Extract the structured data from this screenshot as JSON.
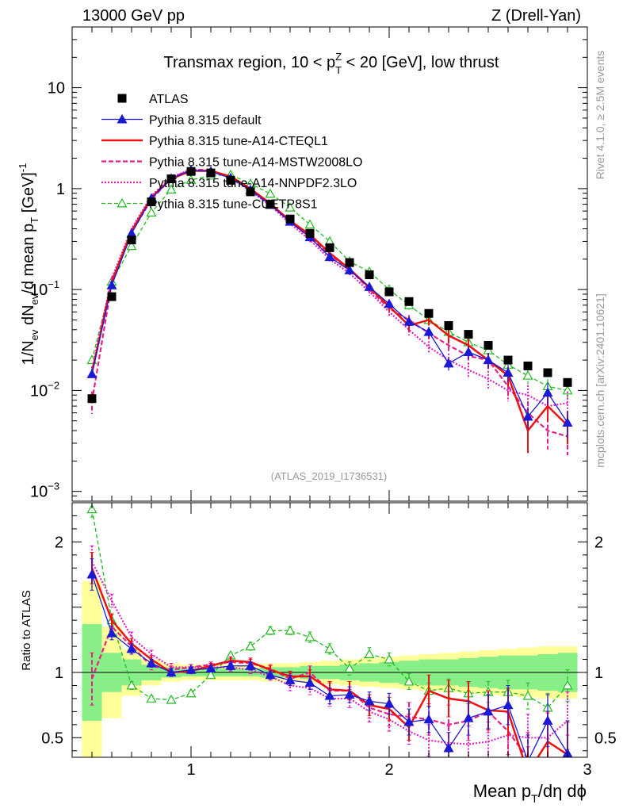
{
  "header": {
    "left": "13000 GeV pp",
    "right": "Z (Drell-Yan)"
  },
  "side_labels": {
    "rivet": "Rivet 4.1.0, ≥ 2.5M events",
    "mcplots": "mcplots.cern.ch [arXiv:2401.10621]"
  },
  "colors": {
    "data": "#000000",
    "default": "#1a1ad6",
    "cteql1": "#ee1111",
    "mstw": "#e8208a",
    "nnpdf": "#e020c8",
    "cuetp8s1": "#22bb22",
    "band_outer": "#ffff99",
    "band_inner": "#88ee88"
  },
  "chart_data": [
    {
      "type": "scatter",
      "title": "Transmax region, 10 < pT^Z < 20 [GeV], low thrust",
      "title_parts": {
        "pre": "Transmax region, 10 < p",
        "sub": "T",
        "sup": "Z",
        "post": " < 20 [GeV], low thrust"
      },
      "watermark": "(ATLAS_2019_I1736531)",
      "ylabel": "1/N_ev dN_ev/d mean p_T [GeV]^-1",
      "ylabel_parts": {
        "a": "1/N",
        "a_sub": "ev",
        "b": " dN",
        "b_sub": "ev",
        "c": "/d mean p",
        "c_sub": "T",
        "d": " [GeV]",
        "d_sup": "-1"
      },
      "yscale": "log",
      "ylim": [
        0.0008,
        40
      ],
      "xlim": [
        0.4,
        3.0
      ],
      "y_tick_labels": [
        {
          "value": 0.001,
          "base": "10",
          "exp": "−3"
        },
        {
          "value": 0.01,
          "base": "10",
          "exp": "−2"
        },
        {
          "value": 0.1,
          "base": "10",
          "exp": "−1"
        },
        {
          "value": 1,
          "base": "1",
          "exp": ""
        },
        {
          "value": 10,
          "base": "10",
          "exp": ""
        }
      ],
      "legend_position": "top-left",
      "legend": [
        {
          "key": "data",
          "label": "ATLAS"
        },
        {
          "key": "default",
          "label": "Pythia 8.315 default"
        },
        {
          "key": "cteql1",
          "label": "Pythia 8.315 tune-A14-CTEQL1"
        },
        {
          "key": "mstw",
          "label": "Pythia 8.315 tune-A14-MSTW2008LO"
        },
        {
          "key": "nnpdf",
          "label": "Pythia 8.315 tune-A14-NNPDF2.3LO"
        },
        {
          "key": "cuetp8s1",
          "label": "Pythia 8.315 tune-CUETP8S1"
        }
      ],
      "x": [
        0.5,
        0.6,
        0.7,
        0.8,
        0.9,
        1.0,
        1.1,
        1.2,
        1.3,
        1.4,
        1.5,
        1.6,
        1.7,
        1.8,
        1.9,
        2.0,
        2.1,
        2.2,
        2.3,
        2.4,
        2.5,
        2.6,
        2.7,
        2.8,
        2.9
      ],
      "series": [
        {
          "key": "data",
          "name": "ATLAS",
          "values": [
            0.0083,
            0.085,
            0.31,
            0.74,
            1.25,
            1.48,
            1.43,
            1.21,
            0.93,
            0.7,
            0.5,
            0.36,
            0.26,
            0.185,
            0.14,
            0.095,
            0.076,
            0.058,
            0.044,
            0.036,
            0.028,
            0.02,
            0.0175,
            0.015,
            0.012
          ]
        },
        {
          "key": "default",
          "name": "Pythia 8.315 default",
          "values": [
            0.0145,
            0.11,
            0.36,
            0.8,
            1.26,
            1.52,
            1.48,
            1.27,
            0.97,
            0.69,
            0.47,
            0.33,
            0.21,
            0.155,
            0.106,
            0.072,
            0.048,
            0.038,
            0.0185,
            0.024,
            0.02,
            0.015,
            0.0055,
            0.0095,
            0.0048
          ],
          "err": [
            0.08,
            0.03,
            0.02,
            0.02,
            0.02,
            0.02,
            0.02,
            0.02,
            0.03,
            0.03,
            0.04,
            0.05,
            0.06,
            0.07,
            0.08,
            0.1,
            0.1,
            0.12,
            0.15,
            0.15,
            0.18,
            0.2,
            0.25,
            0.25,
            0.3
          ]
        },
        {
          "key": "cteql1",
          "name": "Pythia 8.315 tune-A14-CTEQL1",
          "values": [
            0.015,
            0.12,
            0.38,
            0.82,
            1.25,
            1.5,
            1.5,
            1.32,
            1.0,
            0.71,
            0.48,
            0.35,
            0.23,
            0.16,
            0.105,
            0.068,
            0.044,
            0.05,
            0.035,
            0.028,
            0.02,
            0.014,
            0.004,
            0.007,
            0.0045
          ],
          "err": [
            0.08,
            0.03,
            0.02,
            0.02,
            0.02,
            0.02,
            0.02,
            0.02,
            0.03,
            0.03,
            0.04,
            0.05,
            0.06,
            0.07,
            0.08,
            0.1,
            0.12,
            0.12,
            0.15,
            0.15,
            0.18,
            0.22,
            0.4,
            0.3,
            0.35
          ]
        },
        {
          "key": "mstw",
          "name": "Pythia 8.315 tune-A14-MSTW2008LO",
          "values": [
            0.0078,
            0.115,
            0.37,
            0.78,
            1.27,
            1.55,
            1.52,
            1.3,
            0.99,
            0.72,
            0.47,
            0.33,
            0.22,
            0.16,
            0.1,
            0.065,
            0.05,
            0.037,
            0.028,
            0.022,
            0.02,
            0.011,
            0.006,
            0.004,
            0.0035
          ],
          "err": [
            0.25,
            0.03,
            0.02,
            0.02,
            0.02,
            0.02,
            0.02,
            0.02,
            0.03,
            0.03,
            0.04,
            0.05,
            0.06,
            0.07,
            0.08,
            0.1,
            0.12,
            0.14,
            0.15,
            0.18,
            0.18,
            0.25,
            0.3,
            0.35,
            0.35
          ]
        },
        {
          "key": "nnpdf",
          "name": "Pythia 8.315 tune-A14-NNPDF2.3LO",
          "values": [
            0.016,
            0.13,
            0.4,
            0.85,
            1.3,
            1.55,
            1.5,
            1.27,
            0.95,
            0.68,
            0.45,
            0.31,
            0.2,
            0.145,
            0.095,
            0.06,
            0.04,
            0.027,
            0.02,
            0.016,
            0.013,
            0.01,
            0.009,
            0.007,
            0.0075
          ],
          "err": [
            0.08,
            0.03,
            0.02,
            0.02,
            0.02,
            0.02,
            0.02,
            0.02,
            0.03,
            0.03,
            0.04,
            0.05,
            0.06,
            0.07,
            0.08,
            0.1,
            0.12,
            0.14,
            0.16,
            0.18,
            0.2,
            0.22,
            0.25,
            0.28,
            0.3
          ]
        },
        {
          "key": "cuetp8s1",
          "name": "Pythia 8.315 tune-CUETP8S1",
          "values": [
            0.02,
            0.12,
            0.27,
            0.58,
            0.98,
            1.22,
            1.35,
            1.37,
            1.12,
            0.89,
            0.65,
            0.44,
            0.3,
            0.19,
            0.15,
            0.1,
            0.07,
            0.05,
            0.038,
            0.03,
            0.025,
            0.018,
            0.014,
            0.011,
            0.01
          ],
          "err": [
            0.05,
            0.03,
            0.02,
            0.02,
            0.02,
            0.02,
            0.02,
            0.02,
            0.03,
            0.03,
            0.04,
            0.05,
            0.06,
            0.07,
            0.08,
            0.08,
            0.1,
            0.1,
            0.12,
            0.12,
            0.14,
            0.15,
            0.18,
            0.18,
            0.2
          ]
        }
      ]
    },
    {
      "type": "line",
      "ylabel": "Ratio to ATLAS",
      "xlabel": "Mean pT/dη dϕ",
      "xlabel_parts": {
        "a": "Mean p",
        "a_sub": "T",
        "b": "/dη dϕ"
      },
      "xlim": [
        0.4,
        3.0
      ],
      "ylim": [
        0.35,
        2.3
      ],
      "x_tick_labels": [
        1,
        2,
        3
      ],
      "y_tick_labels": [
        0.5,
        1,
        2
      ],
      "x": [
        0.5,
        0.6,
        0.7,
        0.8,
        0.9,
        1.0,
        1.1,
        1.2,
        1.3,
        1.4,
        1.5,
        1.6,
        1.7,
        1.8,
        1.9,
        2.0,
        2.1,
        2.2,
        2.3,
        2.4,
        2.5,
        2.6,
        2.7,
        2.8,
        2.9
      ],
      "bin_edges": [
        0.45,
        0.55,
        0.65,
        0.75,
        0.85,
        0.95,
        1.05,
        1.15,
        1.25,
        1.35,
        1.45,
        1.55,
        1.65,
        1.75,
        1.85,
        1.95,
        2.05,
        2.15,
        2.25,
        2.35,
        2.45,
        2.55,
        2.65,
        2.75,
        2.85,
        2.95
      ],
      "band_inner": [
        0.37,
        0.15,
        0.1,
        0.06,
        0.04,
        0.03,
        0.03,
        0.03,
        0.03,
        0.04,
        0.04,
        0.05,
        0.05,
        0.06,
        0.07,
        0.08,
        0.09,
        0.1,
        0.1,
        0.11,
        0.12,
        0.13,
        0.13,
        0.14,
        0.15
      ],
      "band_outer": [
        0.7,
        0.35,
        0.18,
        0.1,
        0.07,
        0.06,
        0.06,
        0.06,
        0.06,
        0.07,
        0.07,
        0.08,
        0.09,
        0.1,
        0.11,
        0.12,
        0.13,
        0.14,
        0.15,
        0.16,
        0.17,
        0.18,
        0.19,
        0.2,
        0.2
      ],
      "series": [
        {
          "key": "default",
          "name": "Pythia 8.315 default",
          "values": [
            1.75,
            1.3,
            1.18,
            1.07,
            1.0,
            1.02,
            1.03,
            1.05,
            1.05,
            0.98,
            0.94,
            0.92,
            0.82,
            0.83,
            0.78,
            0.76,
            0.62,
            0.64,
            0.42,
            0.65,
            0.7,
            0.75,
            0.32,
            0.63,
            0.38
          ],
          "err": [
            0.12,
            0.05,
            0.04,
            0.03,
            0.03,
            0.02,
            0.02,
            0.03,
            0.03,
            0.03,
            0.04,
            0.05,
            0.06,
            0.06,
            0.07,
            0.08,
            0.1,
            0.1,
            0.12,
            0.13,
            0.13,
            0.15,
            0.2,
            0.2,
            0.25
          ]
        },
        {
          "key": "cteql1",
          "name": "Pythia 8.315 tune-A14-CTEQL1",
          "values": [
            1.8,
            1.4,
            1.22,
            1.1,
            1.0,
            1.01,
            1.05,
            1.09,
            1.08,
            1.02,
            0.97,
            0.97,
            0.87,
            0.86,
            0.75,
            0.72,
            0.58,
            0.86,
            0.8,
            0.78,
            0.71,
            0.7,
            0.23,
            0.47,
            0.37
          ],
          "err": [
            0.12,
            0.05,
            0.04,
            0.03,
            0.03,
            0.02,
            0.02,
            0.03,
            0.03,
            0.03,
            0.04,
            0.05,
            0.06,
            0.07,
            0.08,
            0.09,
            0.1,
            0.12,
            0.14,
            0.15,
            0.15,
            0.18,
            0.2,
            0.22,
            0.25
          ]
        },
        {
          "key": "mstw",
          "name": "Pythia 8.315 tune-A14-MSTW2008LO",
          "values": [
            0.95,
            1.35,
            1.2,
            1.05,
            1.02,
            1.04,
            1.06,
            1.08,
            1.07,
            1.03,
            0.95,
            1.0,
            0.86,
            0.86,
            0.73,
            0.68,
            0.66,
            0.64,
            0.6,
            0.63,
            0.7,
            0.55,
            0.34,
            0.27,
            0.3
          ],
          "err": [
            0.2,
            0.05,
            0.04,
            0.03,
            0.03,
            0.02,
            0.02,
            0.03,
            0.03,
            0.03,
            0.04,
            0.05,
            0.06,
            0.07,
            0.08,
            0.09,
            0.11,
            0.12,
            0.15,
            0.15,
            0.16,
            0.18,
            0.2,
            0.22,
            0.22
          ]
        },
        {
          "key": "nnpdf",
          "name": "Pythia 8.315 tune-A14-NNPDF2.3LO",
          "values": [
            1.85,
            1.55,
            1.27,
            1.14,
            1.04,
            1.04,
            1.04,
            1.04,
            1.02,
            0.97,
            0.9,
            0.88,
            0.8,
            0.8,
            0.7,
            0.64,
            0.55,
            0.48,
            0.46,
            0.45,
            0.47,
            0.52,
            0.5,
            0.5,
            0.63
          ],
          "err": [
            0.12,
            0.05,
            0.04,
            0.03,
            0.03,
            0.02,
            0.02,
            0.03,
            0.03,
            0.03,
            0.04,
            0.05,
            0.06,
            0.07,
            0.08,
            0.09,
            0.1,
            0.12,
            0.13,
            0.14,
            0.15,
            0.17,
            0.18,
            0.2,
            0.22
          ]
        },
        {
          "key": "cuetp8s1",
          "name": "Pythia 8.315 tune-CUETP8S1",
          "values": [
            2.25,
            1.4,
            0.9,
            0.8,
            0.79,
            0.84,
            0.98,
            1.13,
            1.2,
            1.32,
            1.32,
            1.27,
            1.18,
            1.03,
            1.14,
            1.1,
            0.93,
            0.86,
            0.88,
            0.84,
            0.85,
            0.85,
            0.82,
            0.73,
            0.9
          ],
          "err": [
            0.06,
            0.04,
            0.03,
            0.02,
            0.02,
            0.02,
            0.02,
            0.02,
            0.03,
            0.03,
            0.03,
            0.04,
            0.04,
            0.05,
            0.05,
            0.05,
            0.06,
            0.06,
            0.07,
            0.08,
            0.08,
            0.09,
            0.1,
            0.11,
            0.12
          ]
        }
      ]
    }
  ]
}
